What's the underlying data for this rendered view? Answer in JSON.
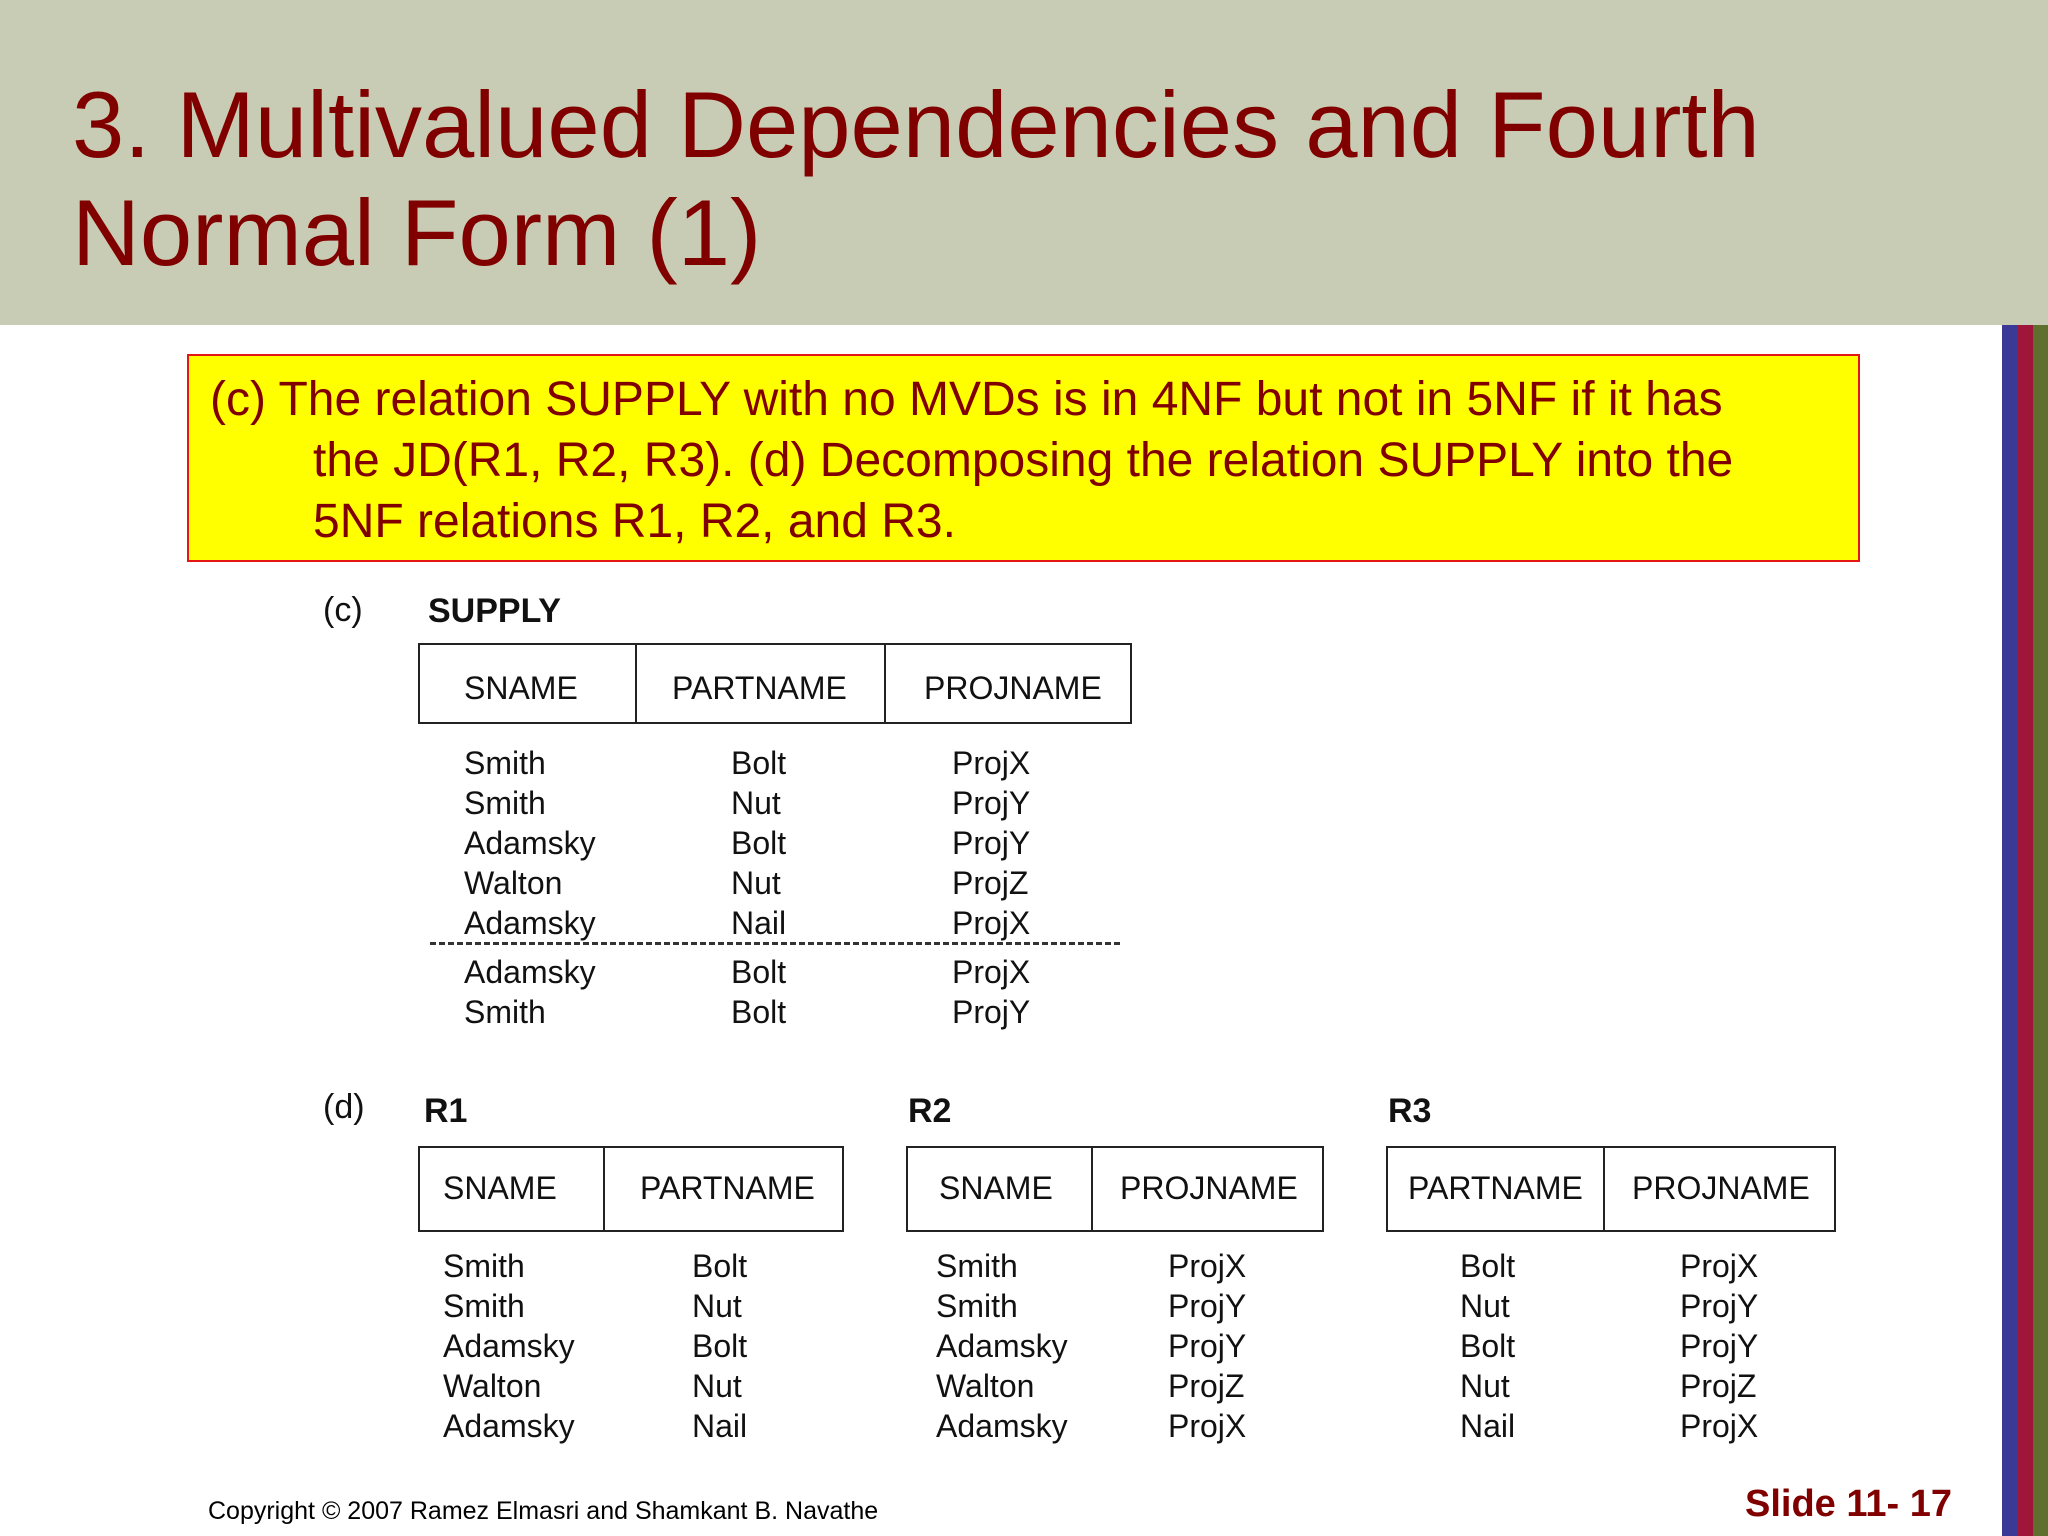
{
  "slide": {
    "title_line1": "3. Multivalued Dependencies and Fourth",
    "title_line2": "Normal Form (1)",
    "callout_line1": "(c) The relation SUPPLY with no MVDs is in 4NF but not in 5NF if it has",
    "callout_line2": "the JD(R1, R2, R3). (d) Decomposing the relation SUPPLY into the",
    "callout_line3": "5NF relations R1, R2, and R3.",
    "copyright": "Copyright © 2007 Ramez Elmasri and Shamkant B. Navathe",
    "slide_number": "Slide 11- 17"
  },
  "colors": {
    "header_bg": "#c9ccb4",
    "title_text": "#800000",
    "callout_bg": "#ffff00",
    "callout_border": "#e51515",
    "stripe_blue": "#3a3a96",
    "stripe_red": "#a0163a",
    "stripe_olive": "#5f6f2d"
  },
  "figure_c": {
    "label": "(c)",
    "name": "SUPPLY",
    "columns": [
      "SNAME",
      "PARTNAME",
      "PROJNAME"
    ],
    "rows": [
      [
        "Smith",
        "Bolt",
        "ProjX"
      ],
      [
        "Smith",
        "Nut",
        "ProjY"
      ],
      [
        "Adamsky",
        "Bolt",
        "ProjY"
      ],
      [
        "Walton",
        "Nut",
        "ProjZ"
      ],
      [
        "Adamsky",
        "Nail",
        "ProjX"
      ],
      [
        "Adamsky",
        "Bolt",
        "ProjX"
      ],
      [
        "Smith",
        "Bolt",
        "ProjY"
      ]
    ]
  },
  "figure_d": {
    "label": "(d)",
    "r1": {
      "name": "R1",
      "columns": [
        "SNAME",
        "PARTNAME"
      ],
      "rows": [
        [
          "Smith",
          "Bolt"
        ],
        [
          "Smith",
          "Nut"
        ],
        [
          "Adamsky",
          "Bolt"
        ],
        [
          "Walton",
          "Nut"
        ],
        [
          "Adamsky",
          "Nail"
        ]
      ]
    },
    "r2": {
      "name": "R2",
      "columns": [
        "SNAME",
        "PROJNAME"
      ],
      "rows": [
        [
          "Smith",
          "ProjX"
        ],
        [
          "Smith",
          "ProjY"
        ],
        [
          "Adamsky",
          "ProjY"
        ],
        [
          "Walton",
          "ProjZ"
        ],
        [
          "Adamsky",
          "ProjX"
        ]
      ]
    },
    "r3": {
      "name": "R3",
      "columns": [
        "PARTNAME",
        "PROJNAME"
      ],
      "rows": [
        [
          "Bolt",
          "ProjX"
        ],
        [
          "Nut",
          "ProjY"
        ],
        [
          "Bolt",
          "ProjY"
        ],
        [
          "Nut",
          "ProjZ"
        ],
        [
          "Nail",
          "ProjX"
        ]
      ]
    }
  }
}
